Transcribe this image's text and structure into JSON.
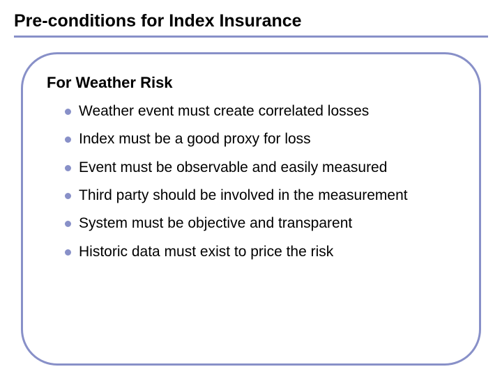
{
  "colors": {
    "accent": "#8890c8",
    "text": "#000000",
    "background": "#ffffff"
  },
  "title": "Pre-conditions for Index Insurance",
  "subheading": "For Weather Risk",
  "bullets": [
    "Weather event must create correlated losses",
    "Index must be a good proxy for loss",
    "Event must be observable and easily measured",
    "Third party should be involved in the measurement",
    "System must be objective and transparent",
    "Historic data must exist to price the risk"
  ]
}
